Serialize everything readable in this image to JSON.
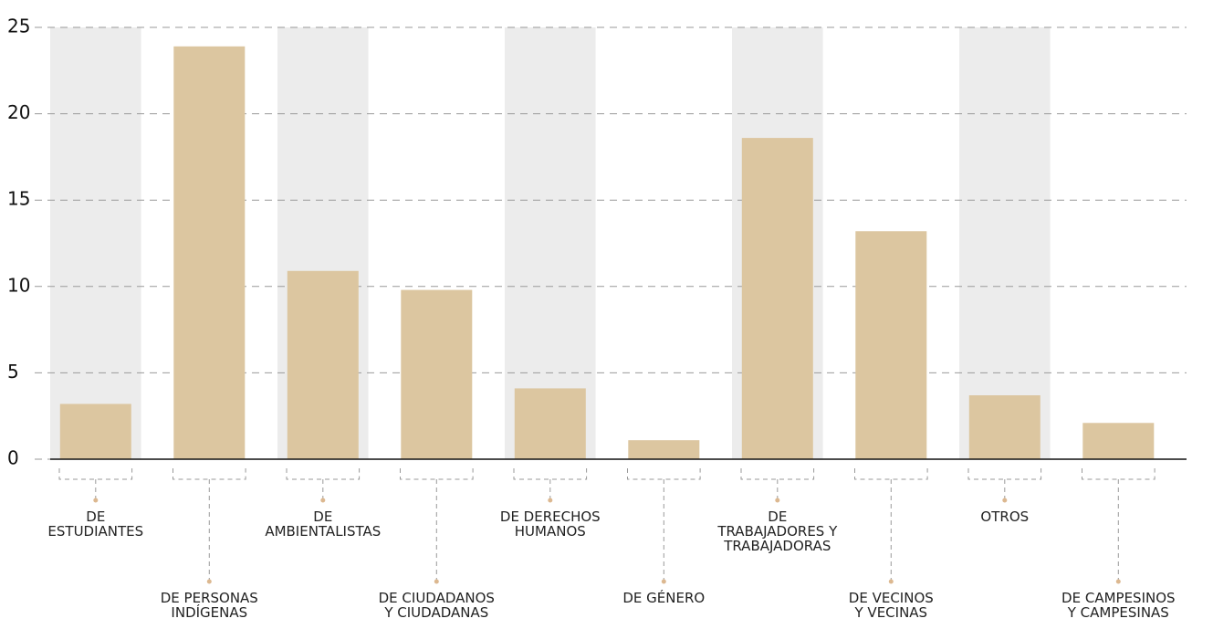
{
  "chart_data": {
    "type": "bar",
    "categories": [
      "DE\nESTUDIANTES",
      "DE PERSONAS\nINDÍGENAS",
      "DE\nAMBIENTALISTAS",
      "DE CIUDADANOS\nY CIUDADANAS",
      "DE DERECHOS\nHUMANOS",
      "DE GÉNERO",
      "DE\nTRABAJADORES Y\nTRABAJADORAS",
      "DE VECINOS\nY VECINAS",
      "OTROS",
      "DE CAMPESINOS\nY CAMPESINAS"
    ],
    "values": [
      3.2,
      23.9,
      10.9,
      9.8,
      4.1,
      1.1,
      18.6,
      13.2,
      3.7,
      2.1
    ],
    "color": "#dcc6a0",
    "ylim": [
      0,
      25
    ],
    "yticks": [
      0,
      5,
      10,
      15,
      20,
      25
    ],
    "grid": true
  }
}
